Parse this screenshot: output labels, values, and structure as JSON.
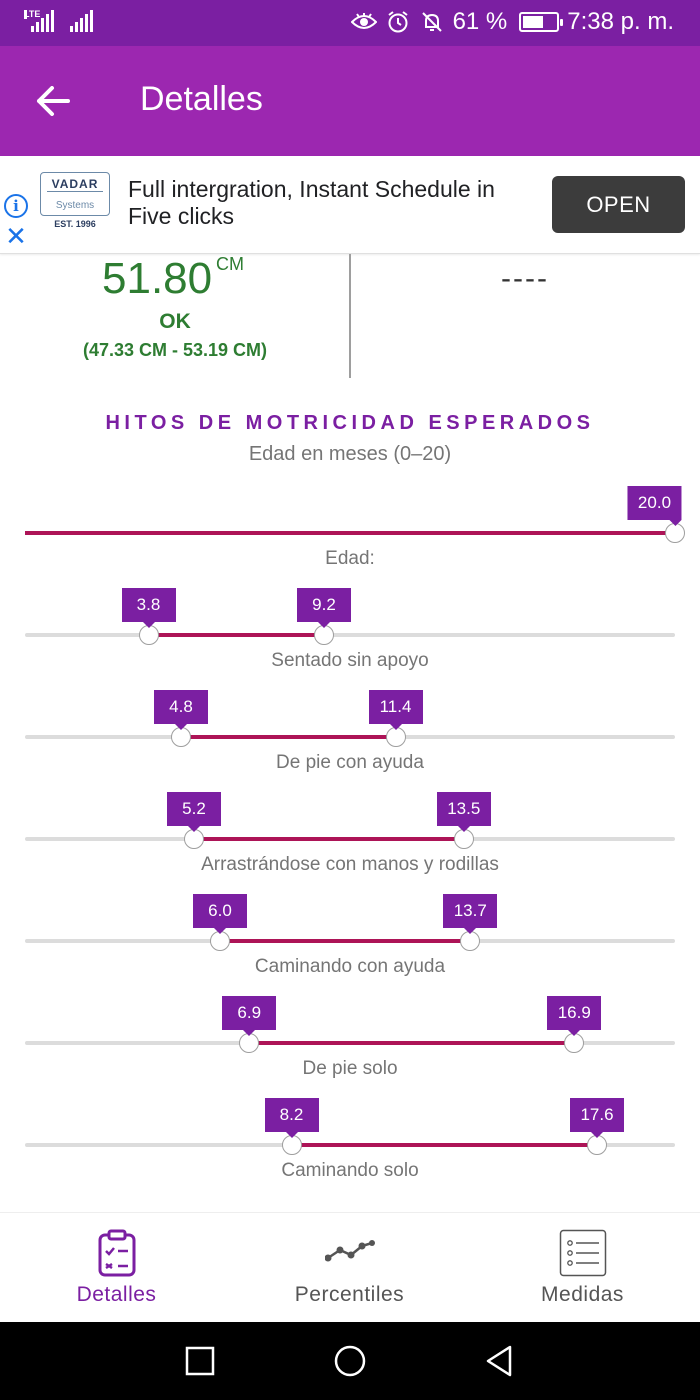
{
  "status_bar": {
    "lte_label": "LTE",
    "battery_percent": "61 %",
    "battery_level": 0.61,
    "time": "7:38 p. m.",
    "icons": [
      "eye-icon",
      "alarm-icon",
      "notifications-off-icon",
      "battery-icon"
    ]
  },
  "app_bar": {
    "title": "Detalles",
    "back_icon": "arrow-back-icon"
  },
  "ad": {
    "logo_name": "VADAR",
    "logo_sub": "Systems",
    "logo_est": "EST. 1996",
    "text": "Full intergration, Instant Schedule in Five clicks",
    "button": "OPEN"
  },
  "measurement": {
    "value": "51.80",
    "unit": "CM",
    "status": "OK",
    "range": "(47.33 CM - 53.19 CM)",
    "other_value": "----"
  },
  "milestones": {
    "title": "HITOS DE MOTRICIDAD ESPERADOS",
    "subtitle": "Edad en meses (0–20)",
    "min": 0,
    "max": 20,
    "age": {
      "label": "Edad:",
      "value": 20.0,
      "value_text": "20.0"
    },
    "items": [
      {
        "label": "Sentado sin apoyo",
        "low": 3.8,
        "high": 9.2,
        "low_text": "3.8",
        "high_text": "9.2"
      },
      {
        "label": "De pie con ayuda",
        "low": 4.8,
        "high": 11.4,
        "low_text": "4.8",
        "high_text": "11.4"
      },
      {
        "label": "Arrastrándose con manos y rodillas",
        "low": 5.2,
        "high": 13.5,
        "low_text": "5.2",
        "high_text": "13.5"
      },
      {
        "label": "Caminando con ayuda",
        "low": 6.0,
        "high": 13.7,
        "low_text": "6.0",
        "high_text": "13.7"
      },
      {
        "label": "De pie solo",
        "low": 6.9,
        "high": 16.9,
        "low_text": "6.9",
        "high_text": "16.9"
      },
      {
        "label": "Caminando solo",
        "low": 8.2,
        "high": 17.6,
        "low_text": "8.2",
        "high_text": "17.6"
      }
    ]
  },
  "colors": {
    "accent": "#9c27b0",
    "accent_dark": "#7b1fa2",
    "range": "#ad1457",
    "ok_green": "#2e7d32",
    "nav_inactive": "#616161"
  },
  "bottom_nav": {
    "items": [
      {
        "label": "Detalles",
        "icon": "clipboard-checklist-icon",
        "active": true
      },
      {
        "label": "Percentiles",
        "icon": "line-chart-icon",
        "active": false
      },
      {
        "label": "Medidas",
        "icon": "list-icon",
        "active": false
      }
    ]
  }
}
